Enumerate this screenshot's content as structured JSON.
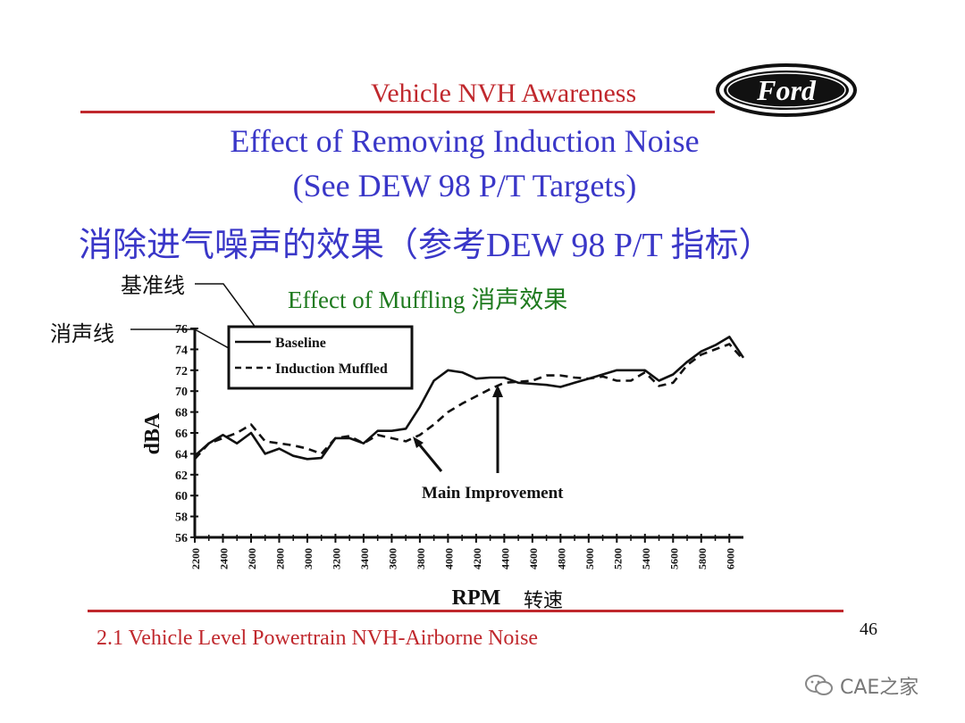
{
  "header": {
    "title": "Vehicle NVH Awareness",
    "logo_text": "Ford"
  },
  "slide": {
    "title_line1": "Effect of Removing Induction Noise",
    "title_line2": "(See DEW 98 P/T Targets)",
    "title_cn": "消除进气噪声的效果（参考DEW 98 P/T 指标）"
  },
  "callouts": {
    "baseline_cn": "基准线",
    "muffled_cn": "消声线",
    "main_improvement": "Main Improvement",
    "rpm_cn": "转速"
  },
  "footer": {
    "text": "2.1 Vehicle Level Powertrain NVH-Airborne Noise",
    "page_number": "46"
  },
  "watermark": {
    "text": "CAE之家",
    "icon": "wechat-icon"
  },
  "colors": {
    "accent_red": "#c0282d",
    "title_blue": "#3a37c8",
    "chart_title_green": "#1e7a1e"
  },
  "chart_data": {
    "type": "line",
    "title": "Effect of Muffling 消声效果",
    "xlabel": "RPM",
    "ylabel": "dBA",
    "xlim": [
      2200,
      6100
    ],
    "ylim": [
      56,
      76
    ],
    "x_ticks": [
      2200,
      2400,
      2600,
      2800,
      3000,
      3200,
      3400,
      3600,
      3800,
      4000,
      4200,
      4400,
      4600,
      4800,
      5000,
      5200,
      5400,
      5600,
      5800,
      6000
    ],
    "y_ticks": [
      56,
      58,
      60,
      62,
      64,
      66,
      68,
      70,
      72,
      74,
      76
    ],
    "legend_position": "top-left",
    "series": [
      {
        "name": "Baseline",
        "style": "solid",
        "points": [
          [
            2200,
            63.8
          ],
          [
            2300,
            65.0
          ],
          [
            2400,
            65.8
          ],
          [
            2500,
            65.0
          ],
          [
            2600,
            66.0
          ],
          [
            2700,
            64.0
          ],
          [
            2800,
            64.5
          ],
          [
            2900,
            63.8
          ],
          [
            3000,
            63.5
          ],
          [
            3100,
            63.6
          ],
          [
            3200,
            65.5
          ],
          [
            3300,
            65.5
          ],
          [
            3400,
            65.0
          ],
          [
            3500,
            66.2
          ],
          [
            3600,
            66.2
          ],
          [
            3700,
            66.4
          ],
          [
            3800,
            68.5
          ],
          [
            3900,
            71.0
          ],
          [
            4000,
            72.0
          ],
          [
            4100,
            71.8
          ],
          [
            4200,
            71.2
          ],
          [
            4300,
            71.3
          ],
          [
            4400,
            71.3
          ],
          [
            4500,
            70.8
          ],
          [
            4600,
            70.7
          ],
          [
            4700,
            70.6
          ],
          [
            4800,
            70.4
          ],
          [
            4900,
            70.8
          ],
          [
            5000,
            71.2
          ],
          [
            5100,
            71.6
          ],
          [
            5200,
            72.0
          ],
          [
            5300,
            72.0
          ],
          [
            5400,
            72.0
          ],
          [
            5500,
            71.0
          ],
          [
            5600,
            71.6
          ],
          [
            5700,
            72.8
          ],
          [
            5800,
            73.8
          ],
          [
            5900,
            74.4
          ],
          [
            6000,
            75.2
          ],
          [
            6100,
            73.2
          ]
        ]
      },
      {
        "name": "Induction Muffled",
        "style": "dashed",
        "points": [
          [
            2200,
            63.5
          ],
          [
            2300,
            65.0
          ],
          [
            2400,
            65.5
          ],
          [
            2500,
            66.0
          ],
          [
            2600,
            66.8
          ],
          [
            2700,
            65.2
          ],
          [
            2800,
            65.0
          ],
          [
            2900,
            64.8
          ],
          [
            3000,
            64.5
          ],
          [
            3100,
            64.0
          ],
          [
            3200,
            65.5
          ],
          [
            3300,
            65.7
          ],
          [
            3400,
            65.0
          ],
          [
            3500,
            65.8
          ],
          [
            3600,
            65.5
          ],
          [
            3700,
            65.2
          ],
          [
            3800,
            65.8
          ],
          [
            3900,
            66.8
          ],
          [
            4000,
            68.0
          ],
          [
            4100,
            68.8
          ],
          [
            4200,
            69.5
          ],
          [
            4300,
            70.2
          ],
          [
            4400,
            70.8
          ],
          [
            4500,
            70.9
          ],
          [
            4600,
            71.0
          ],
          [
            4700,
            71.5
          ],
          [
            4800,
            71.5
          ],
          [
            4900,
            71.3
          ],
          [
            5000,
            71.2
          ],
          [
            5100,
            71.4
          ],
          [
            5200,
            71.0
          ],
          [
            5300,
            71.0
          ],
          [
            5400,
            71.8
          ],
          [
            5500,
            70.5
          ],
          [
            5600,
            70.8
          ],
          [
            5700,
            72.5
          ],
          [
            5800,
            73.5
          ],
          [
            5900,
            74.0
          ],
          [
            6000,
            74.5
          ],
          [
            6100,
            73.0
          ]
        ]
      }
    ]
  }
}
